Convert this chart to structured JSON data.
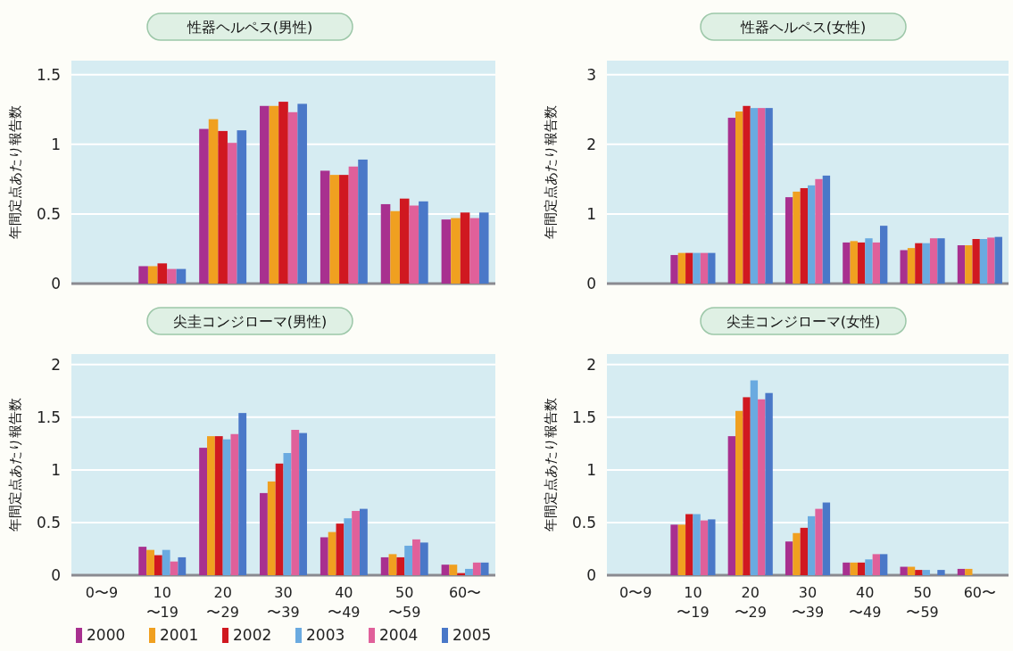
{
  "chart_data": [
    {
      "type": "bar",
      "title": "性器ヘルペス(男性)",
      "ylabel": "年間定点あたり報告数",
      "categories": [
        null,
        null,
        null,
        null,
        null,
        null,
        null
      ],
      "ylim": [
        0,
        1.6
      ],
      "yticks": [
        0,
        0.5,
        1,
        1.5
      ],
      "grid": "y",
      "tick_labels": "y",
      "legend": false,
      "series": [
        {
          "color": "#a8308f",
          "values": [
            null,
            0.125,
            1.11,
            1.275,
            0.81,
            0.57,
            0.46
          ]
        },
        {
          "color": "#f0a020",
          "values": [
            null,
            0.125,
            1.18,
            1.275,
            0.78,
            0.52,
            0.47
          ]
        },
        {
          "color": "#d01820",
          "values": [
            null,
            0.145,
            1.095,
            1.305,
            0.78,
            0.61,
            0.51
          ]
        },
        {
          "color": "#e0609a",
          "values": [
            null,
            0.105,
            1.01,
            1.23,
            0.84,
            0.56,
            0.47
          ]
        },
        {
          "color": "#4a78c8",
          "values": [
            null,
            0.105,
            1.1,
            1.29,
            0.89,
            0.59,
            0.51
          ]
        }
      ]
    },
    {
      "type": "bar",
      "title": "性器ヘルペス(女性)",
      "ylabel": "年間定点あたり報告数",
      "categories": [
        null,
        null,
        null,
        null,
        null,
        null,
        null
      ],
      "ylim": [
        0,
        3.2
      ],
      "yticks": [
        0,
        1,
        2,
        3
      ],
      "grid": "y",
      "tick_labels": "y",
      "legend": false,
      "series": [
        {
          "color": "#a8308f",
          "values": [
            null,
            0.41,
            2.38,
            1.24,
            0.59,
            0.48,
            0.55
          ]
        },
        {
          "color": "#f0a020",
          "values": [
            null,
            0.44,
            2.47,
            1.32,
            0.61,
            0.51,
            0.55
          ]
        },
        {
          "color": "#d01820",
          "values": [
            null,
            0.44,
            2.55,
            1.37,
            0.59,
            0.58,
            0.64
          ]
        },
        {
          "color": "#6aaae0",
          "values": [
            null,
            0.44,
            2.52,
            1.41,
            0.65,
            0.58,
            0.64
          ]
        },
        {
          "color": "#e0609a",
          "values": [
            null,
            0.44,
            2.52,
            1.5,
            0.59,
            0.65,
            0.66
          ]
        },
        {
          "color": "#4a78c8",
          "values": [
            null,
            0.44,
            2.52,
            1.55,
            0.83,
            0.65,
            0.67
          ]
        }
      ]
    },
    {
      "type": "bar",
      "title": "尖圭コンジローマ(男性)",
      "ylabel": "年間定点あたり報告数",
      "categories": [
        "0〜9",
        "10\n〜19",
        "20\n〜29",
        "30\n〜39",
        "40\n〜49",
        "50\n〜59",
        "60〜"
      ],
      "ylim": [
        0,
        2.1
      ],
      "yticks": [
        0,
        0.5,
        1,
        1.5,
        2
      ],
      "grid": "y",
      "legend": "bottom",
      "series": [
        {
          "name": "2000",
          "color": "#a8308f",
          "values": [
            null,
            0.27,
            1.21,
            0.78,
            0.36,
            0.17,
            0.1
          ]
        },
        {
          "name": "2001",
          "color": "#f0a020",
          "values": [
            null,
            0.24,
            1.32,
            0.89,
            0.41,
            0.2,
            0.1
          ]
        },
        {
          "name": "2002",
          "color": "#d01820",
          "values": [
            null,
            0.19,
            1.32,
            1.06,
            0.49,
            0.17,
            0.02
          ]
        },
        {
          "name": "2003",
          "color": "#6aaae0",
          "values": [
            null,
            0.24,
            1.29,
            1.16,
            0.54,
            0.28,
            0.06
          ]
        },
        {
          "name": "2004",
          "color": "#e0609a",
          "values": [
            null,
            0.13,
            1.34,
            1.38,
            0.61,
            0.34,
            0.12
          ]
        },
        {
          "name": "2005",
          "color": "#4a78c8",
          "values": [
            null,
            0.17,
            1.54,
            1.35,
            0.63,
            0.31,
            0.12
          ]
        }
      ]
    },
    {
      "type": "bar",
      "title": "尖圭コンジローマ(女性)",
      "ylabel": "年間定点あたり報告数",
      "categories": [
        "0〜9",
        "10\n〜19",
        "20\n〜29",
        "30\n〜39",
        "40\n〜49",
        "50\n〜59",
        "60〜"
      ],
      "ylim": [
        0,
        2.1
      ],
      "yticks": [
        0,
        0.5,
        1,
        1.5,
        2
      ],
      "grid": "y",
      "legend": false,
      "series": [
        {
          "color": "#a8308f",
          "values": [
            null,
            0.48,
            1.32,
            0.32,
            0.12,
            0.08,
            0.06
          ]
        },
        {
          "color": "#f0a020",
          "values": [
            null,
            0.48,
            1.56,
            0.4,
            0.12,
            0.08,
            0.06
          ]
        },
        {
          "color": "#d01820",
          "values": [
            null,
            0.58,
            1.69,
            0.45,
            0.12,
            0.05,
            null
          ]
        },
        {
          "color": "#6aaae0",
          "values": [
            null,
            0.58,
            1.85,
            0.56,
            0.15,
            0.05,
            null
          ]
        },
        {
          "color": "#e0609a",
          "values": [
            null,
            0.52,
            1.67,
            0.63,
            0.2,
            null,
            null
          ]
        },
        {
          "color": "#4a78c8",
          "values": [
            null,
            0.53,
            1.73,
            0.69,
            0.2,
            0.05,
            null
          ]
        }
      ]
    }
  ]
}
